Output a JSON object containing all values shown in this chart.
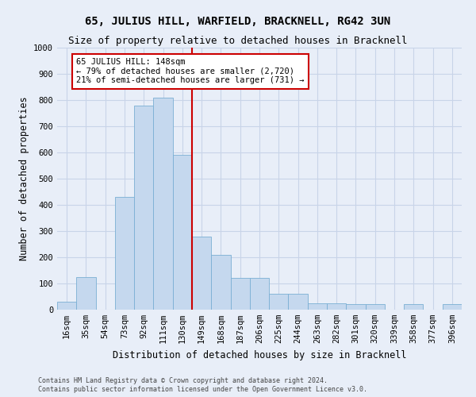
{
  "title": "65, JULIUS HILL, WARFIELD, BRACKNELL, RG42 3UN",
  "subtitle": "Size of property relative to detached houses in Bracknell",
  "xlabel": "Distribution of detached houses by size in Bracknell",
  "ylabel": "Number of detached properties",
  "categories": [
    "16sqm",
    "35sqm",
    "54sqm",
    "73sqm",
    "92sqm",
    "111sqm",
    "130sqm",
    "149sqm",
    "168sqm",
    "187sqm",
    "206sqm",
    "225sqm",
    "244sqm",
    "263sqm",
    "282sqm",
    "301sqm",
    "320sqm",
    "339sqm",
    "358sqm",
    "377sqm",
    "396sqm"
  ],
  "values": [
    30,
    125,
    0,
    430,
    780,
    810,
    590,
    280,
    210,
    120,
    120,
    60,
    60,
    25,
    25,
    20,
    20,
    0,
    20,
    0,
    20
  ],
  "bar_color": "#c5d8ee",
  "bar_edge_color": "#7aafd4",
  "vline_index": 6.5,
  "annotation_text": "65 JULIUS HILL: 148sqm\n← 79% of detached houses are smaller (2,720)\n21% of semi-detached houses are larger (731) →",
  "annotation_box_facecolor": "#ffffff",
  "annotation_box_edgecolor": "#cc0000",
  "vline_color": "#cc0000",
  "ylim": [
    0,
    1000
  ],
  "yticks": [
    0,
    100,
    200,
    300,
    400,
    500,
    600,
    700,
    800,
    900,
    1000
  ],
  "grid_color": "#c8d4e8",
  "background_color": "#e8eef8",
  "footer_line1": "Contains HM Land Registry data © Crown copyright and database right 2024.",
  "footer_line2": "Contains public sector information licensed under the Open Government Licence v3.0.",
  "title_fontsize": 10,
  "subtitle_fontsize": 9,
  "tick_fontsize": 7.5,
  "ylabel_fontsize": 8.5,
  "xlabel_fontsize": 8.5,
  "annotation_fontsize": 7.5,
  "footer_fontsize": 6
}
